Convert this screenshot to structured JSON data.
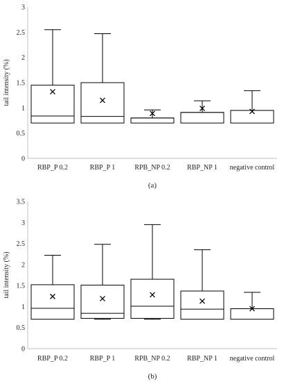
{
  "chart_data": [
    {
      "type": "box",
      "panel_label": "(a)",
      "title": "",
      "xlabel": "",
      "ylabel": "tail intensity (%)",
      "ylim": [
        0,
        3
      ],
      "yticks": [
        "0",
        "0.5",
        "1",
        "1.5",
        "2",
        "2.5",
        "3"
      ],
      "tick_step": 0.5,
      "grid": false,
      "categories": [
        "RBP_P 0.2",
        "RBP_P 1",
        "RPB_NP 0.2",
        "RBP_NP 1",
        "negative control"
      ],
      "boxes": [
        {
          "min": 0.7,
          "q1": 0.7,
          "median": 0.84,
          "q3": 1.45,
          "max": 2.55,
          "mean": 1.32
        },
        {
          "min": 0.7,
          "q1": 0.7,
          "median": 0.83,
          "q3": 1.5,
          "max": 2.47,
          "mean": 1.15
        },
        {
          "min": 0.7,
          "q1": 0.7,
          "median": 0.8,
          "q3": 0.8,
          "max": 0.96,
          "mean": 0.89
        },
        {
          "min": 0.7,
          "q1": 0.7,
          "median": 0.91,
          "q3": 0.91,
          "max": 1.14,
          "mean": 0.99
        },
        {
          "min": 0.7,
          "q1": 0.7,
          "median": 0.95,
          "q3": 0.95,
          "max": 1.34,
          "mean": 0.93
        }
      ]
    },
    {
      "type": "box",
      "panel_label": "(b)",
      "title": "",
      "xlabel": "",
      "ylabel": "tail intensity (%)",
      "ylim": [
        0,
        3.5
      ],
      "yticks": [
        "0",
        "0.5",
        "1",
        "1.5",
        "2",
        "2.5",
        "3",
        "3.5"
      ],
      "tick_step": 0.5,
      "grid": false,
      "categories": [
        "RBP_P 0.2",
        "RBP_P 1",
        "RPB_NP 0.2",
        "RBP_NP 1",
        "negative control"
      ],
      "boxes": [
        {
          "min": 0.7,
          "q1": 0.7,
          "median": 0.96,
          "q3": 1.52,
          "max": 2.22,
          "mean": 1.24
        },
        {
          "min": 0.7,
          "q1": 0.72,
          "median": 0.84,
          "q3": 1.51,
          "max": 2.48,
          "mean": 1.19
        },
        {
          "min": 0.7,
          "q1": 0.72,
          "median": 1.01,
          "q3": 1.65,
          "max": 2.95,
          "mean": 1.28
        },
        {
          "min": 0.7,
          "q1": 0.7,
          "median": 0.94,
          "q3": 1.37,
          "max": 2.35,
          "mean": 1.13
        },
        {
          "min": 0.7,
          "q1": 0.7,
          "median": 0.95,
          "q3": 0.95,
          "max": 1.34,
          "mean": 0.95
        }
      ]
    }
  ]
}
